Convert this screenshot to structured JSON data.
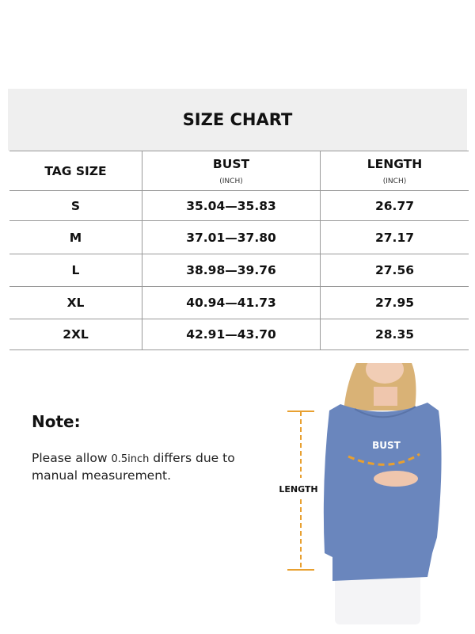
{
  "title": "SIZE CHART",
  "columns": [
    {
      "label": "TAG SIZE",
      "unit": ""
    },
    {
      "label": "BUST",
      "unit": "(INCH)"
    },
    {
      "label": "LENGTH",
      "unit": "(INCH)"
    }
  ],
  "rows": [
    {
      "size": "S",
      "bust": "35.04—35.83",
      "length": "26.77"
    },
    {
      "size": "M",
      "bust": "37.01—37.80",
      "length": "27.17"
    },
    {
      "size": "L",
      "bust": "38.98—39.76",
      "length": "27.56"
    },
    {
      "size": "XL",
      "bust": "40.94—41.73",
      "length": "27.95"
    },
    {
      "size": "2XL",
      "bust": "42.91—43.70",
      "length": "28.35"
    }
  ],
  "note": {
    "heading": "Note:",
    "text_before": "Please allow ",
    "text_small": "0.5inch",
    "text_after": " differs due to manual measurement."
  },
  "figure": {
    "bust_label": "BUST",
    "length_label": "LENGTH",
    "garment_color": "#6a86bd",
    "marker_color": "#e8a030"
  }
}
